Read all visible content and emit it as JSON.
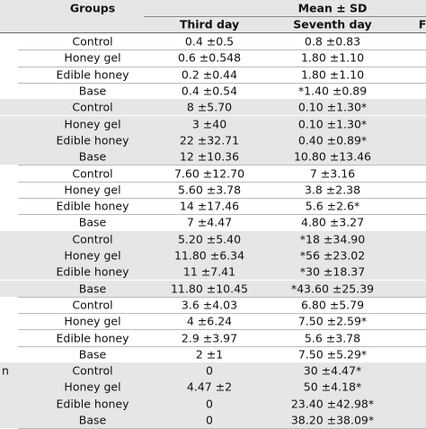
{
  "header": {
    "groups": "Groups",
    "mean_sd": "Mean ± SD",
    "third_day": "Third day",
    "seventh_day": "Seventh day",
    "next_column": "F"
  },
  "table": {
    "rows": [
      {
        "group": "Control",
        "third_day": "0.4 ±0.5",
        "seventh_day": "0.8 ±0.83"
      },
      {
        "group": "Honey gel",
        "third_day": "0.6 ±0.548",
        "seventh_day": "1.80 ±1.10"
      },
      {
        "group": "Edible honey",
        "third_day": "0.2 ±0.44",
        "seventh_day": "1.80 ±1.10"
      },
      {
        "group": "Base",
        "third_day": "0.4 ±0.54",
        "seventh_day": "*1.40 ±0.89"
      },
      {
        "group": "Control",
        "third_day": "8 ±5.70",
        "seventh_day": "0.10 ±1.30*"
      },
      {
        "group": "Honey gel",
        "third_day": "3 ±40",
        "seventh_day": "0.10 ±1.30*"
      },
      {
        "group": "Edible honey",
        "third_day": "22 ±32.71",
        "seventh_day": "0.40 ±0.89*"
      },
      {
        "group": "Base",
        "third_day": "12 ±10.36",
        "seventh_day": "10.80 ±13.46"
      },
      {
        "group": "Control",
        "third_day": "7.60 ±12.70",
        "seventh_day": "7 ±3.16"
      },
      {
        "group": "Honey gel",
        "third_day": "5.60 ±3.78",
        "seventh_day": "3.8 ±2.38"
      },
      {
        "group": "Edible honey",
        "third_day": "14 ±17.46",
        "seventh_day": "5.6 ±2.6*"
      },
      {
        "group": "Base",
        "third_day": "7 ±4.47",
        "seventh_day": "4.80 ±3.27"
      },
      {
        "group": "Control",
        "third_day": "5.20 ±5.40",
        "seventh_day": "*18 ±34.90"
      },
      {
        "group": "Honey gel",
        "third_day": "11.80 ±6.34",
        "seventh_day": "*56 ±23.02"
      },
      {
        "group": "Edible honey",
        "third_day": "11 ±7.41",
        "seventh_day": "*30 ±18.37"
      },
      {
        "group": "Base",
        "third_day": "11.80 ±10.45",
        "seventh_day": "*43.60 ±25.39"
      },
      {
        "group": "Control",
        "third_day": "3.6 ±4.03",
        "seventh_day": "6.80 ±5.79"
      },
      {
        "group": "Honey gel",
        "third_day": "4 ±6.24",
        "seventh_day": "7.50 ±2.59*"
      },
      {
        "group": "Edible honey",
        "third_day": "2.9 ±3.97",
        "seventh_day": "5.6 ±3.78"
      },
      {
        "group": "Base",
        "third_day": "2 ±1",
        "seventh_day": "7.50 ±5.29*"
      },
      {
        "side": "n",
        "group": "Control",
        "third_day": "0",
        "seventh_day": "30 ±4.47*"
      },
      {
        "group": "Honey gel",
        "third_day": "4.47 ±2",
        "seventh_day": "50 ±4.18*"
      },
      {
        "group": "Edible honey",
        "third_day": "0",
        "seventh_day": "23.40 ±42.98*"
      },
      {
        "group": "Base",
        "third_day": "0",
        "seventh_day": "38.20 ±38.09*"
      }
    ]
  }
}
